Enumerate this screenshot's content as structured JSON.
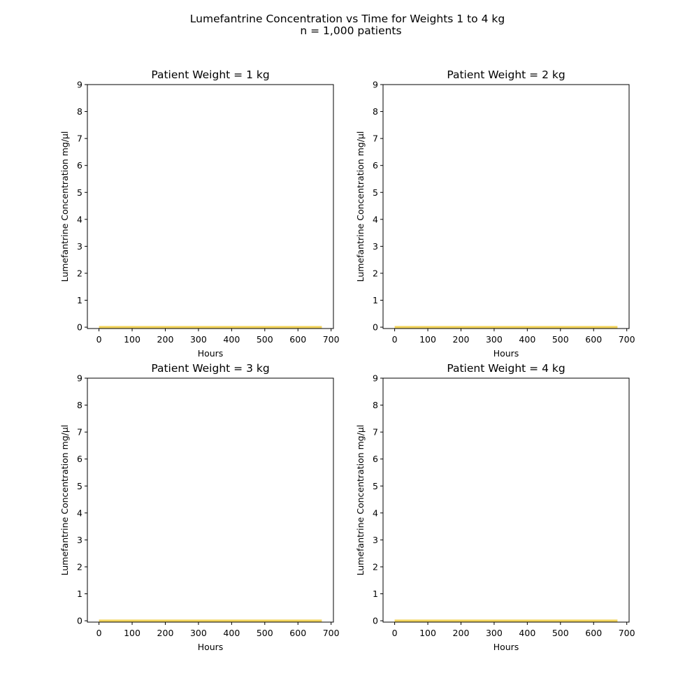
{
  "figure": {
    "title_line1": "Lumefantrine Concentration vs Time for Weights 1 to 4 kg",
    "title_line2": "n = 1,000 patients"
  },
  "chart_data": [
    {
      "type": "line",
      "title": "Patient Weight = 1 kg",
      "xlabel": "Hours",
      "ylabel": "Lumefantrine Concentration mg/µl",
      "xlim": [
        -35,
        707
      ],
      "ylim": [
        -0.05,
        9
      ],
      "xticks": [
        0,
        100,
        200,
        300,
        400,
        500,
        600,
        700
      ],
      "yticks": [
        0,
        1,
        2,
        3,
        4,
        5,
        6,
        7,
        8,
        9
      ],
      "grid": false,
      "series": [
        {
          "color": "#f2d45c",
          "x": [
            0,
            672
          ],
          "y": [
            0,
            0
          ]
        }
      ]
    },
    {
      "type": "line",
      "title": "Patient Weight = 2 kg",
      "xlabel": "Hours",
      "ylabel": "Lumefantrine Concentration mg/µl",
      "xlim": [
        -35,
        707
      ],
      "ylim": [
        -0.05,
        9
      ],
      "xticks": [
        0,
        100,
        200,
        300,
        400,
        500,
        600,
        700
      ],
      "yticks": [
        0,
        1,
        2,
        3,
        4,
        5,
        6,
        7,
        8,
        9
      ],
      "grid": false,
      "series": [
        {
          "color": "#f2d45c",
          "x": [
            0,
            672
          ],
          "y": [
            0,
            0
          ]
        }
      ]
    },
    {
      "type": "line",
      "title": "Patient Weight = 3 kg",
      "xlabel": "Hours",
      "ylabel": "Lumefantrine Concentration mg/µl",
      "xlim": [
        -35,
        707
      ],
      "ylim": [
        -0.05,
        9
      ],
      "xticks": [
        0,
        100,
        200,
        300,
        400,
        500,
        600,
        700
      ],
      "yticks": [
        0,
        1,
        2,
        3,
        4,
        5,
        6,
        7,
        8,
        9
      ],
      "grid": false,
      "series": [
        {
          "color": "#f2d45c",
          "x": [
            0,
            672
          ],
          "y": [
            0,
            0
          ]
        }
      ]
    },
    {
      "type": "line",
      "title": "Patient Weight = 4 kg",
      "xlabel": "Hours",
      "ylabel": "Lumefantrine Concentration mg/µl",
      "xlim": [
        -35,
        707
      ],
      "ylim": [
        -0.05,
        9
      ],
      "xticks": [
        0,
        100,
        200,
        300,
        400,
        500,
        600,
        700
      ],
      "yticks": [
        0,
        1,
        2,
        3,
        4,
        5,
        6,
        7,
        8,
        9
      ],
      "grid": false,
      "series": [
        {
          "color": "#f2d45c",
          "x": [
            0,
            672
          ],
          "y": [
            0,
            0
          ]
        }
      ]
    }
  ]
}
